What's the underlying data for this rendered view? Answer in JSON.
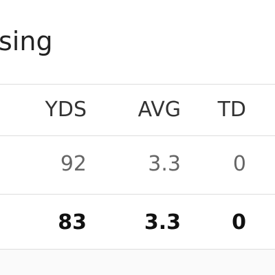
{
  "title": "sing",
  "table": {
    "columns": [
      "YDS",
      "AVG",
      "TD"
    ],
    "rows": [
      [
        92,
        3.3,
        0
      ],
      [
        83,
        3.3,
        0
      ]
    ]
  }
}
